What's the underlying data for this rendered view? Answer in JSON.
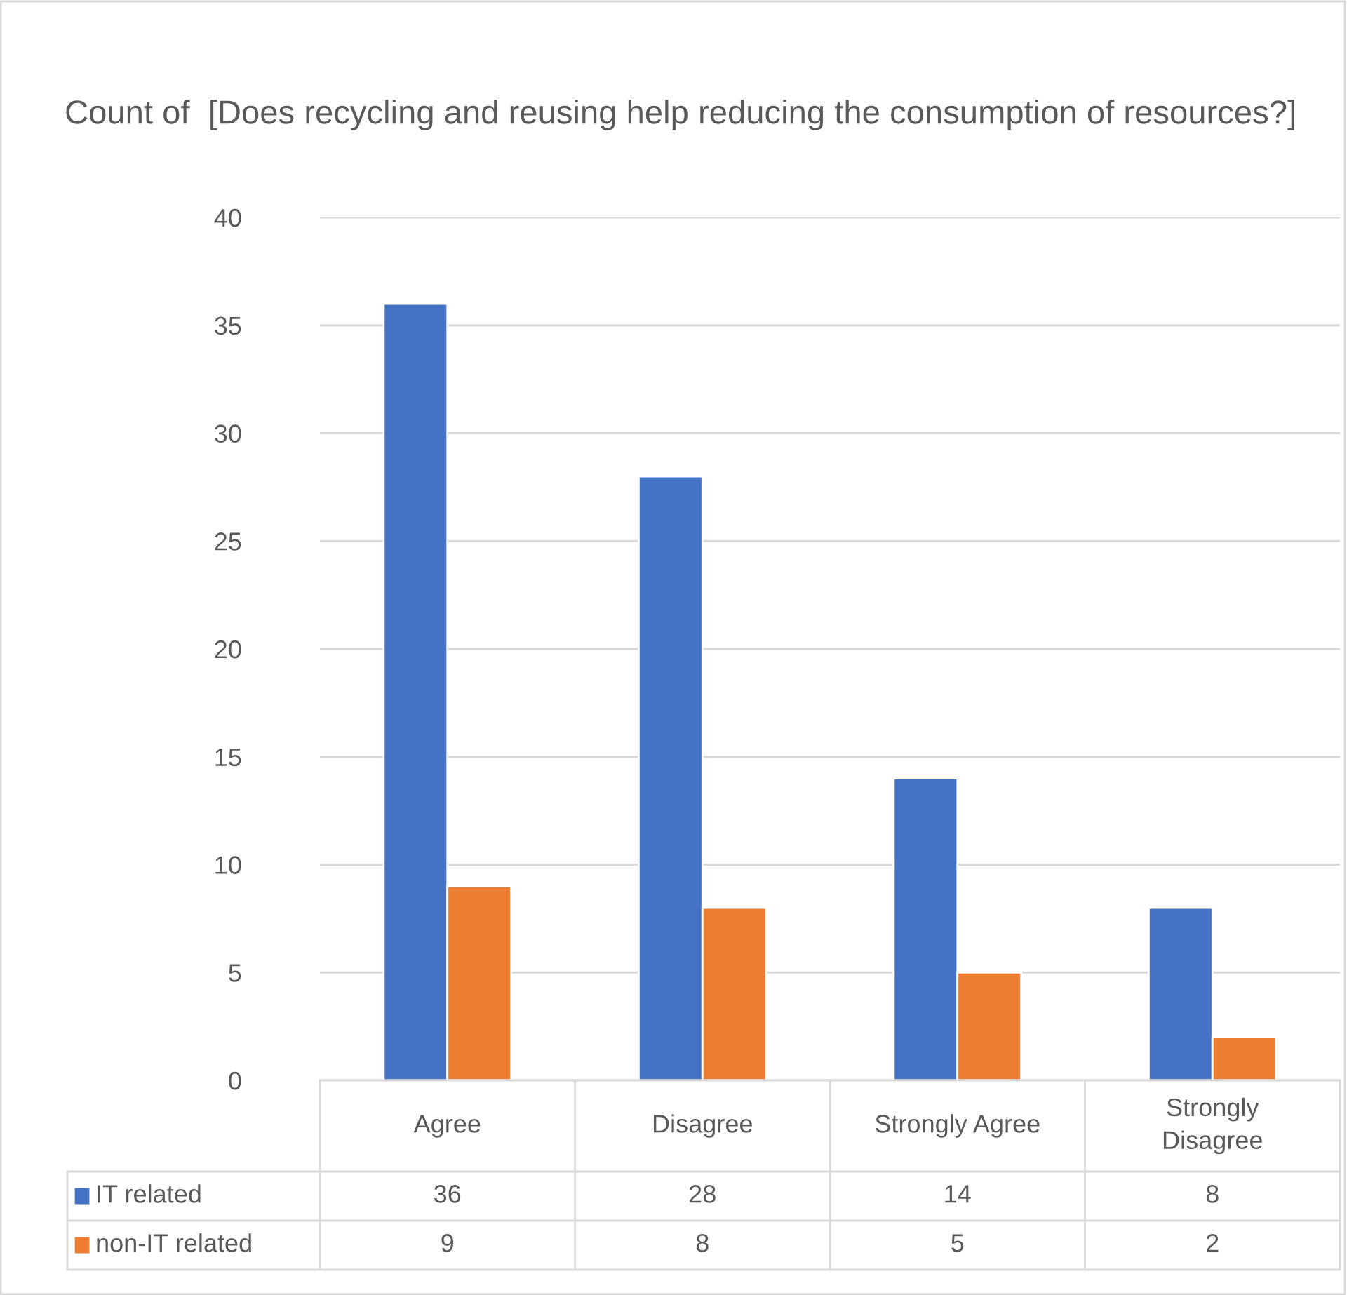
{
  "chart_data": {
    "type": "bar",
    "title": "Count of  [Does recycling and reusing help reducing the consumption of resources?]",
    "categories": [
      "Agree",
      "Disagree",
      "Strongly Agree",
      "Strongly\nDisagree"
    ],
    "series": [
      {
        "name": "IT related",
        "color": "#4472c4",
        "values": [
          36,
          28,
          14,
          8
        ]
      },
      {
        "name": "non-IT related",
        "color": "#ed7d31",
        "values": [
          9,
          8,
          5,
          2
        ]
      }
    ],
    "ylim": [
      0,
      40
    ],
    "yticks": [
      0,
      5,
      10,
      15,
      20,
      25,
      30,
      35,
      40
    ],
    "grid": "y",
    "data_labels": true,
    "legend": "bottom"
  }
}
